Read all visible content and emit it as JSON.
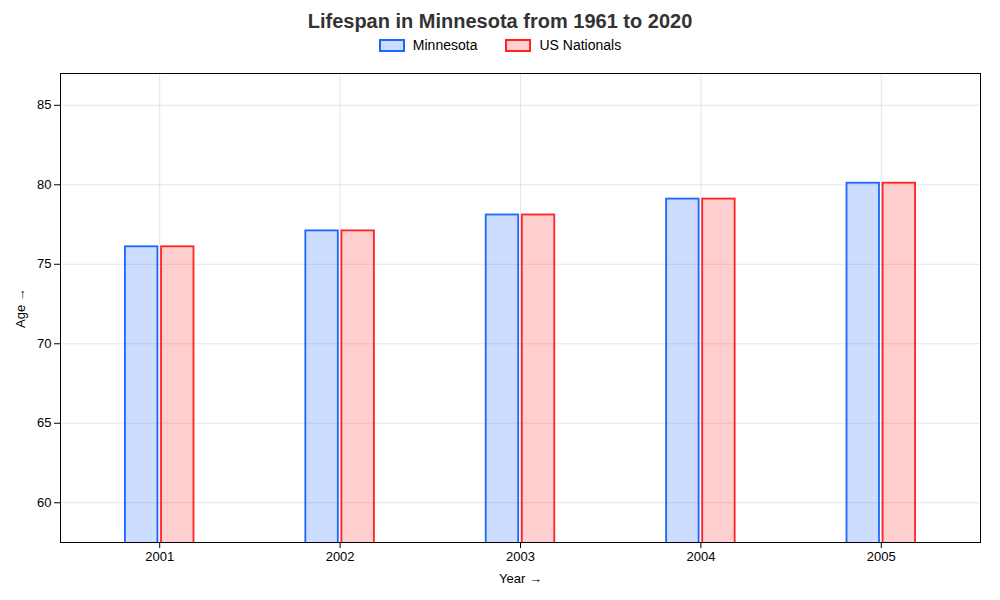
{
  "chart_data": {
    "type": "bar",
    "title": "Lifespan in Minnesota from 1961 to 2020",
    "xlabel": "Year",
    "ylabel": "Age",
    "categories": [
      "2001",
      "2002",
      "2003",
      "2004",
      "2005"
    ],
    "series": [
      {
        "name": "Minnesota",
        "color": "#1a66ff",
        "values": [
          76.1,
          77.1,
          78.1,
          79.1,
          80.1
        ]
      },
      {
        "name": "US Nationals",
        "color": "#ff2222",
        "values": [
          76.1,
          77.1,
          78.1,
          79.1,
          80.1
        ]
      }
    ],
    "ylim": [
      57.5,
      87
    ],
    "yticks": [
      60,
      65,
      70,
      75,
      80,
      85
    ],
    "grid": true,
    "legend": "upper center"
  }
}
